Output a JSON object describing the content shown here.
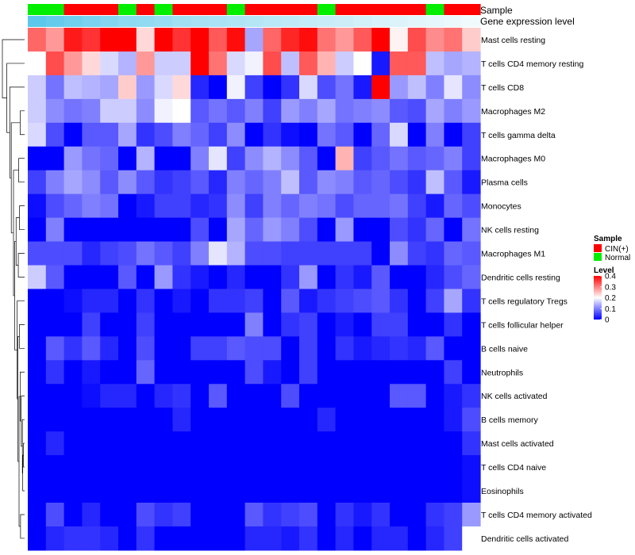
{
  "chart_data": {
    "type": "heatmap",
    "title": "",
    "annotation_labels": {
      "sample": "Sample",
      "gene_expression": "Gene expression level"
    },
    "rows": [
      "Mast cells resting",
      "T cells CD4 memory resting",
      "T cells CD8",
      "Macrophages M2",
      "T cells gamma delta",
      "Macrophages M0",
      "Plasma cells",
      "Monocytes",
      "NK cells resting",
      "Macrophages M1",
      "Dendritic cells resting",
      "T cells regulatory  Tregs",
      "T cells follicular helper",
      "B cells naive",
      "Neutrophils",
      "NK cells activated",
      "B cells memory",
      "Mast cells activated",
      "T cells CD4 naive",
      "Eosinophils",
      "T cells CD4 memory activated",
      "Dendritic cells activated"
    ],
    "sample_groups": [
      "Normal",
      "Normal",
      "CIN(+)",
      "CIN(+)",
      "CIN(+)",
      "Normal",
      "CIN(+)",
      "Normal",
      "CIN(+)",
      "CIN(+)",
      "CIN(+)",
      "Normal",
      "CIN(+)",
      "CIN(+)",
      "CIN(+)",
      "CIN(+)",
      "Normal",
      "CIN(+)",
      "CIN(+)",
      "CIN(+)",
      "CIN(+)",
      "CIN(+)",
      "Normal",
      "CIN(+)",
      "CIN(+)"
    ],
    "expression_level": [
      0.3,
      0.28,
      0.26,
      0.24,
      0.22,
      0.2,
      0.19,
      0.18,
      0.16,
      0.15,
      0.14,
      0.13,
      0.12,
      0.11,
      0.1,
      0.09,
      0.08,
      0.07,
      0.06,
      0.05,
      0.04,
      0.03,
      0.02,
      0.01,
      0.0
    ],
    "values": [
      [
        0.32,
        0.28,
        0.38,
        0.36,
        0.4,
        0.4,
        0.23,
        0.4,
        0.36,
        0.41,
        0.33,
        0.39,
        0.13,
        0.32,
        0.37,
        0.39,
        0.31,
        0.28,
        0.33,
        0.4,
        0.21,
        0.34,
        0.29,
        0.31,
        0.24
      ],
      [
        0.2,
        0.34,
        0.28,
        0.23,
        0.17,
        0.14,
        0.28,
        0.16,
        0.16,
        0.4,
        0.31,
        0.17,
        0.19,
        0.34,
        0.15,
        0.33,
        0.26,
        0.16,
        0.2,
        0.02,
        0.33,
        0.33,
        0.15,
        0.13,
        0.14
      ],
      [
        0.16,
        0.09,
        0.15,
        0.14,
        0.13,
        0.24,
        0.12,
        0.17,
        0.23,
        0.03,
        0.0,
        0.19,
        0.05,
        0.0,
        0.04,
        0.17,
        0.06,
        0.09,
        0.02,
        0.4,
        0.12,
        0.15,
        0.1,
        0.18,
        0.11
      ],
      [
        0.16,
        0.11,
        0.09,
        0.1,
        0.16,
        0.16,
        0.11,
        0.19,
        0.2,
        0.07,
        0.09,
        0.07,
        0.1,
        0.05,
        0.12,
        0.1,
        0.13,
        0.09,
        0.1,
        0.11,
        0.07,
        0.06,
        0.13,
        0.1,
        0.12
      ],
      [
        0.17,
        0.06,
        0.0,
        0.07,
        0.07,
        0.13,
        0.04,
        0.06,
        0.1,
        0.08,
        0.05,
        0.11,
        0.0,
        0.04,
        0.01,
        0.0,
        0.09,
        0.07,
        0.0,
        0.08,
        0.17,
        0.0,
        0.1,
        0.0,
        0.05
      ],
      [
        0.0,
        0.0,
        0.12,
        0.09,
        0.08,
        0.0,
        0.14,
        0.0,
        0.0,
        0.1,
        0.18,
        0.05,
        0.11,
        0.14,
        0.11,
        0.07,
        0.0,
        0.26,
        0.05,
        0.07,
        0.09,
        0.07,
        0.08,
        0.1,
        0.05
      ],
      [
        0.05,
        0.1,
        0.13,
        0.11,
        0.07,
        0.11,
        0.07,
        0.04,
        0.05,
        0.07,
        0.03,
        0.1,
        0.08,
        0.1,
        0.15,
        0.07,
        0.11,
        0.1,
        0.07,
        0.08,
        0.06,
        0.04,
        0.15,
        0.07,
        0.02
      ],
      [
        0.01,
        0.06,
        0.08,
        0.1,
        0.09,
        0.0,
        0.02,
        0.05,
        0.05,
        0.03,
        0.04,
        0.11,
        0.05,
        0.1,
        0.08,
        0.1,
        0.09,
        0.06,
        0.08,
        0.08,
        0.09,
        0.05,
        0.02,
        0.08,
        0.06
      ],
      [
        0.0,
        0.1,
        0.0,
        0.0,
        0.0,
        0.0,
        0.0,
        0.0,
        0.0,
        0.06,
        0.0,
        0.13,
        0.08,
        0.12,
        0.1,
        0.06,
        0.0,
        0.12,
        0.0,
        0.0,
        0.06,
        0.04,
        0.08,
        0.0,
        0.09
      ],
      [
        0.06,
        0.06,
        0.06,
        0.03,
        0.05,
        0.06,
        0.09,
        0.07,
        0.05,
        0.1,
        0.18,
        0.14,
        0.06,
        0.06,
        0.05,
        0.05,
        0.05,
        0.05,
        0.05,
        0.0,
        0.11,
        0.05,
        0.04,
        0.08,
        0.07
      ],
      [
        0.16,
        0.07,
        0.0,
        0.0,
        0.0,
        0.07,
        0.0,
        0.12,
        0.04,
        0.02,
        0.0,
        0.03,
        0.0,
        0.0,
        0.04,
        0.12,
        0.0,
        0.04,
        0.02,
        0.07,
        0.0,
        0.0,
        0.03,
        0.06,
        0.08
      ],
      [
        0.0,
        0.0,
        0.01,
        0.03,
        0.03,
        0.0,
        0.04,
        0.0,
        0.02,
        0.0,
        0.04,
        0.04,
        0.05,
        0.0,
        0.07,
        0.02,
        0.04,
        0.05,
        0.06,
        0.07,
        0.04,
        0.0,
        0.05,
        0.13,
        0.04
      ],
      [
        0.0,
        0.0,
        0.0,
        0.05,
        0.0,
        0.0,
        0.05,
        0.0,
        0.0,
        0.0,
        0.0,
        0.0,
        0.1,
        0.0,
        0.04,
        0.05,
        0.0,
        0.02,
        0.0,
        0.05,
        0.05,
        0.0,
        0.0,
        0.04,
        0.0
      ],
      [
        0.0,
        0.07,
        0.04,
        0.07,
        0.03,
        0.0,
        0.06,
        0.0,
        0.0,
        0.05,
        0.05,
        0.07,
        0.06,
        0.06,
        0.0,
        0.05,
        0.0,
        0.04,
        0.02,
        0.03,
        0.04,
        0.03,
        0.07,
        0.0,
        0.0
      ],
      [
        0.0,
        0.04,
        0.0,
        0.02,
        0.0,
        0.0,
        0.08,
        0.0,
        0.0,
        0.0,
        0.0,
        0.0,
        0.06,
        0.02,
        0.0,
        0.05,
        0.0,
        0.0,
        0.0,
        0.0,
        0.0,
        0.0,
        0.0,
        0.05,
        0.0
      ],
      [
        0.0,
        0.0,
        0.0,
        0.01,
        0.03,
        0.03,
        0.0,
        0.03,
        0.04,
        0.0,
        0.07,
        0.0,
        0.0,
        0.0,
        0.06,
        0.0,
        0.0,
        0.0,
        0.0,
        0.0,
        0.07,
        0.07,
        0.0,
        0.02,
        0.04
      ],
      [
        0.0,
        0.0,
        0.0,
        0.0,
        0.0,
        0.0,
        0.0,
        0.0,
        0.03,
        0.0,
        0.0,
        0.0,
        0.0,
        0.0,
        0.0,
        0.0,
        0.03,
        0.0,
        0.0,
        0.0,
        0.0,
        0.0,
        0.0,
        0.02,
        0.06
      ],
      [
        0.0,
        0.03,
        0.0,
        0.0,
        0.0,
        0.0,
        0.0,
        0.0,
        0.0,
        0.0,
        0.0,
        0.0,
        0.0,
        0.0,
        0.0,
        0.0,
        0.0,
        0.0,
        0.0,
        0.0,
        0.0,
        0.0,
        0.0,
        0.0,
        0.04
      ],
      [
        0.0,
        0.0,
        0.0,
        0.0,
        0.0,
        0.0,
        0.0,
        0.0,
        0.0,
        0.0,
        0.0,
        0.0,
        0.0,
        0.0,
        0.0,
        0.0,
        0.0,
        0.0,
        0.0,
        0.0,
        0.0,
        0.0,
        0.0,
        0.0,
        0.01
      ],
      [
        0.0,
        0.0,
        0.0,
        0.0,
        0.0,
        0.0,
        0.0,
        0.0,
        0.0,
        0.0,
        0.0,
        0.0,
        0.0,
        0.0,
        0.0,
        0.0,
        0.0,
        0.0,
        0.0,
        0.0,
        0.0,
        0.0,
        0.0,
        0.0,
        0.01
      ],
      [
        0.0,
        0.06,
        0.0,
        0.03,
        0.0,
        0.0,
        0.06,
        0.04,
        0.05,
        0.0,
        0.0,
        0.0,
        0.07,
        0.04,
        0.05,
        0.06,
        0.0,
        0.04,
        0.02,
        0.04,
        0.0,
        0.0,
        0.04,
        0.05,
        0.12
      ],
      [
        0.0,
        0.03,
        0.04,
        0.04,
        0.03,
        0.0,
        0.04,
        0.0,
        0.0,
        0.0,
        0.0,
        0.0,
        0.03,
        0.03,
        0.02,
        0.04,
        0.0,
        0.03,
        0.0,
        0.03,
        0.03,
        0.0,
        0.03,
        0.05,
        0.2
      ]
    ],
    "legend": {
      "sample_title": "Sample",
      "sample_entries": [
        {
          "label": "CIN(+)",
          "color": "#FF0000"
        },
        {
          "label": "Normal",
          "color": "#00EE00"
        }
      ],
      "level_title": "Level",
      "level_ticks": [
        "0.4",
        "0.3",
        "0.2",
        "0.1",
        "0"
      ],
      "level_tick_values": [
        0.4,
        0.3,
        0.2,
        0.1,
        0
      ],
      "placement": "right"
    },
    "color_scale": {
      "low": "#0000FF",
      "mid": "#FFFFFF",
      "high": "#FF0000",
      "min": 0,
      "mid_value": 0.2,
      "max": 0.4
    },
    "expression_scale": {
      "low": "#F0FAFD",
      "high": "#5BC8EB"
    },
    "row_dendrogram": [
      [
        17,
        18,
        0.03
      ],
      [
        22,
        19,
        0.05
      ],
      [
        16,
        23,
        0.06
      ],
      [
        15,
        24,
        0.09
      ],
      [
        14,
        25,
        0.12
      ],
      [
        20,
        21,
        0.11
      ],
      [
        26,
        27,
        0.15
      ],
      [
        12,
        13,
        0.14
      ],
      [
        28,
        29,
        0.18
      ],
      [
        11,
        30,
        0.2
      ],
      [
        9,
        10,
        0.17
      ],
      [
        7,
        8,
        0.14
      ],
      [
        32,
        33,
        0.23
      ],
      [
        31,
        34,
        0.27
      ],
      [
        5,
        6,
        0.16
      ],
      [
        35,
        36,
        0.3
      ],
      [
        3,
        4,
        0.12
      ],
      [
        37,
        38,
        0.36
      ],
      [
        2,
        39,
        0.4
      ],
      [
        1,
        40,
        0.48
      ],
      [
        0,
        41,
        0.6
      ]
    ]
  }
}
